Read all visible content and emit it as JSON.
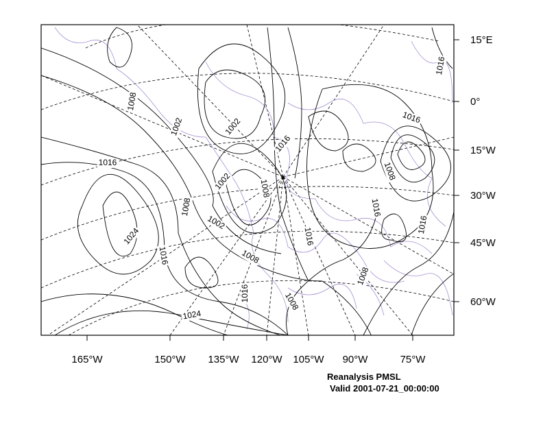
{
  "map": {
    "title": "Reanalysis PMSL",
    "valid": "Valid 2001-07-21_00:00:00",
    "longitude_labels": [
      "165°W",
      "150°W",
      "135°W",
      "120°W",
      "105°W",
      "90°W",
      "75°W"
    ],
    "latitude_labels": [
      "15°E",
      "0°",
      "15°W",
      "30°W",
      "45°W",
      "60°W"
    ],
    "contour_labels": [
      1008,
      1002,
      1002,
      1016,
      1016,
      1002,
      1008,
      1008,
      1002,
      1024,
      1016,
      1008,
      1016,
      1008,
      1016,
      1016,
      1016,
      1016,
      1008,
      1008,
      1016,
      1024
    ]
  }
}
